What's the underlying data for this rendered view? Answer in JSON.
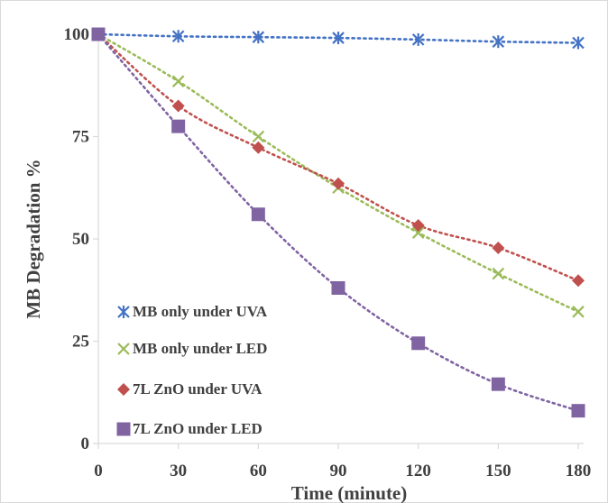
{
  "chart_data": {
    "type": "scatter",
    "title": "",
    "xlabel": "Time (minute)",
    "ylabel": "MB Degradation %",
    "xlim": [
      0,
      180
    ],
    "ylim": [
      0,
      100
    ],
    "x_ticks": [
      0,
      30,
      60,
      90,
      120,
      150,
      180
    ],
    "y_ticks": [
      0,
      25,
      50,
      75,
      100
    ],
    "grid": false,
    "legend_position": "bottom-left",
    "x": [
      0,
      30,
      60,
      90,
      120,
      150,
      180
    ],
    "series": [
      {
        "name": "MB only under UVA",
        "values": [
          100,
          99.5,
          99.3,
          99.1,
          98.7,
          98.2,
          97.9
        ],
        "color": "#4472C4",
        "marker": "asterisk-icon",
        "trendline": "dotted"
      },
      {
        "name": "MB only under LED",
        "values": [
          100,
          88.5,
          75,
          62.5,
          51.5,
          41.5,
          32.2
        ],
        "color": "#9BBB59",
        "marker": "x-icon",
        "trendline": "dotted"
      },
      {
        "name": "7L ZnO under UVA",
        "values": [
          100,
          82.5,
          72.3,
          63.5,
          53.3,
          47.8,
          39.8
        ],
        "color": "#C0504D",
        "marker": "diamond-icon",
        "trendline": "dotted"
      },
      {
        "name": "7L ZnO under LED",
        "values": [
          100,
          77.5,
          56,
          38,
          24.5,
          14.5,
          8
        ],
        "color": "#8064A2",
        "marker": "square-icon",
        "trendline": "dotted"
      }
    ]
  }
}
